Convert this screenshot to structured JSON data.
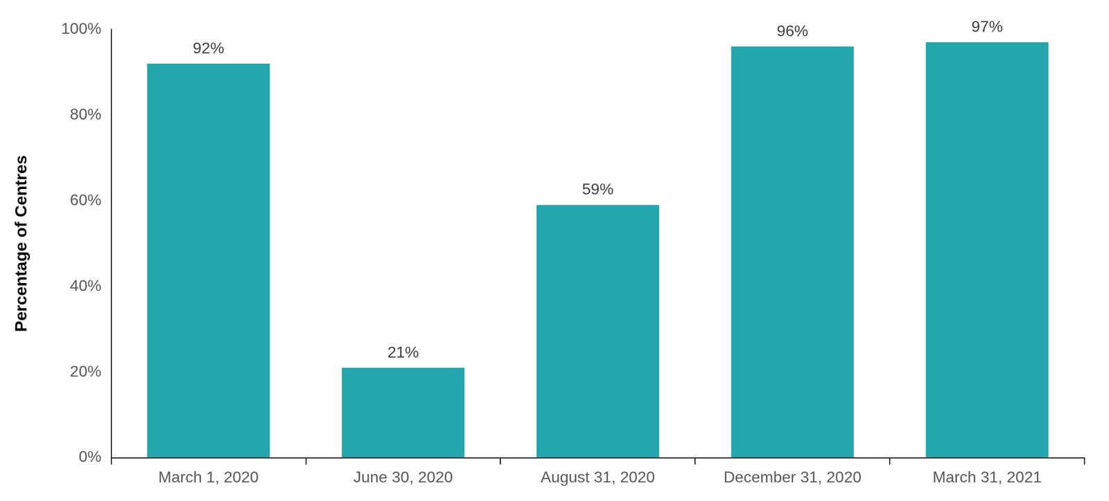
{
  "chart_data": {
    "type": "bar",
    "y_label": "Percentage of Centres",
    "categories": [
      "March 1, 2020",
      "June 30, 2020",
      "August 31, 2020",
      "December 31, 2020",
      "March 31, 2021"
    ],
    "values": [
      92,
      21,
      59,
      96,
      97
    ],
    "value_labels": [
      "92%",
      "21%",
      "59%",
      "96%",
      "97%"
    ],
    "data_labels": true,
    "color": "#24a6ad",
    "ylim": [
      0,
      100
    ],
    "yticks": [
      {
        "value": 0,
        "label": "0%"
      },
      {
        "value": 20,
        "label": "20%"
      },
      {
        "value": 40,
        "label": "40%"
      },
      {
        "value": 60,
        "label": "60%"
      },
      {
        "value": 80,
        "label": "80%"
      },
      {
        "value": 100,
        "label": "100%"
      }
    ],
    "grid": false
  }
}
